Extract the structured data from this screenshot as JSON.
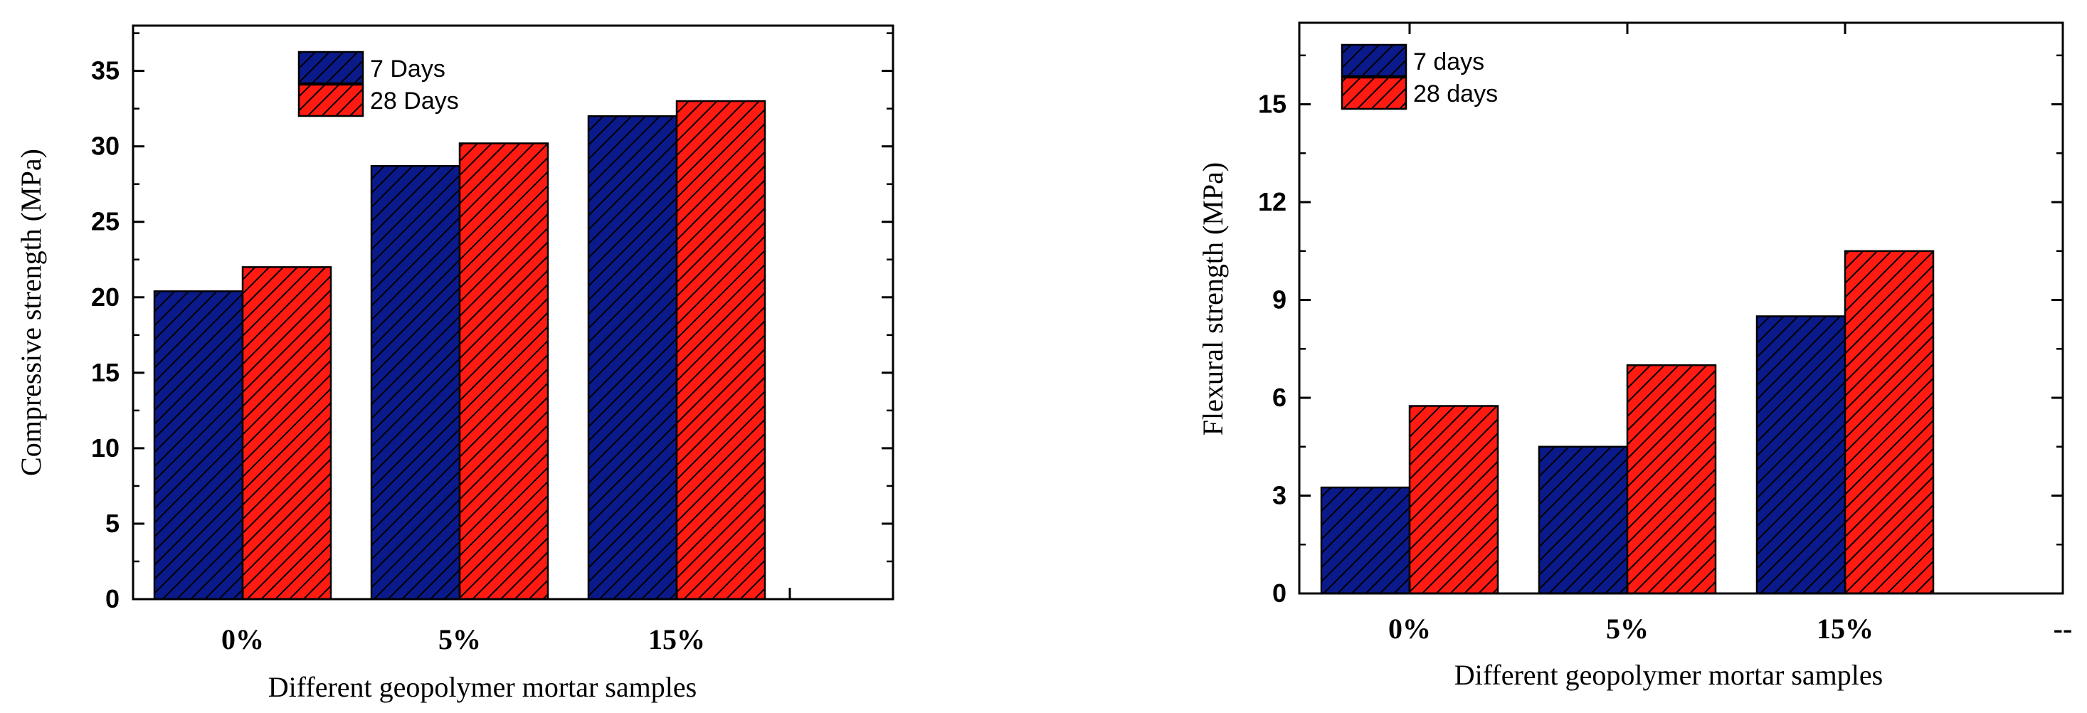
{
  "colors": {
    "series1": "#0b1a8a",
    "series2": "#ff1a12",
    "axis": "#000000"
  },
  "chart_data": [
    {
      "type": "bar",
      "categories": [
        "0%",
        "5%",
        "15%"
      ],
      "series": [
        {
          "name": "7 Days",
          "values": [
            20.4,
            28.7,
            32.0
          ]
        },
        {
          "name": "28 Days",
          "values": [
            22.0,
            30.2,
            33.0
          ]
        }
      ],
      "title": "",
      "xlabel": "Different geopolymer mortar samples",
      "ylabel": "Compressive strength (MPa)",
      "ylim": [
        0,
        38
      ],
      "yticks": [
        0,
        5,
        10,
        15,
        20,
        25,
        30,
        35
      ],
      "ytick_labels": [
        "0",
        "5",
        "10",
        "15",
        "20",
        "25",
        "30",
        "35"
      ],
      "extra_x_ticks": 1,
      "grid": false,
      "legend": "top-center"
    },
    {
      "type": "bar",
      "categories": [
        "0%",
        "5%",
        "15%",
        "--"
      ],
      "series": [
        {
          "name": "7 days",
          "values": [
            3.25,
            4.5,
            8.5,
            null
          ]
        },
        {
          "name": "28 days",
          "values": [
            5.75,
            7.0,
            10.5,
            null
          ]
        }
      ],
      "title": "",
      "xlabel": "Different geopolymer mortar samples",
      "ylabel": "Flexural strength (MPa)",
      "ylim": [
        0,
        17.5
      ],
      "yticks": [
        0,
        3,
        6,
        9,
        12,
        15
      ],
      "ytick_labels": [
        "0",
        "3",
        "6",
        "9",
        "12",
        "15"
      ],
      "grid": false,
      "legend": "top-left"
    }
  ]
}
